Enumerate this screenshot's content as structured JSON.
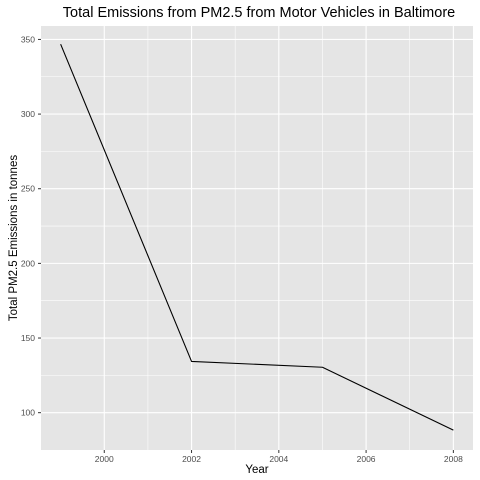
{
  "chart_data": {
    "type": "line",
    "title": "Total Emissions from PM2.5 from Motor Vehicles in Baltimore",
    "xlabel": "Year",
    "ylabel": "Total PM2.5 Emissions in tonnes",
    "x": [
      1999,
      2002,
      2005,
      2008
    ],
    "series": [
      {
        "values": [
          346.82,
          134.31,
          130.43,
          88.28
        ]
      }
    ],
    "xlim": [
      1998.55,
      2008.45
    ],
    "ylim": [
      75.0,
      359.0
    ],
    "x_ticks": [
      2000,
      2002,
      2004,
      2006,
      2008
    ],
    "y_ticks": [
      100,
      150,
      200,
      250,
      300,
      350
    ],
    "x_tick_labels": [
      "2000",
      "2002",
      "2004",
      "2006",
      "2008"
    ],
    "y_tick_labels": [
      "100",
      "150",
      "200",
      "250",
      "300",
      "350"
    ],
    "grid": true,
    "background_color": "#e5e5e5",
    "grid_color": "#ffffff",
    "line_color": "#000000"
  }
}
